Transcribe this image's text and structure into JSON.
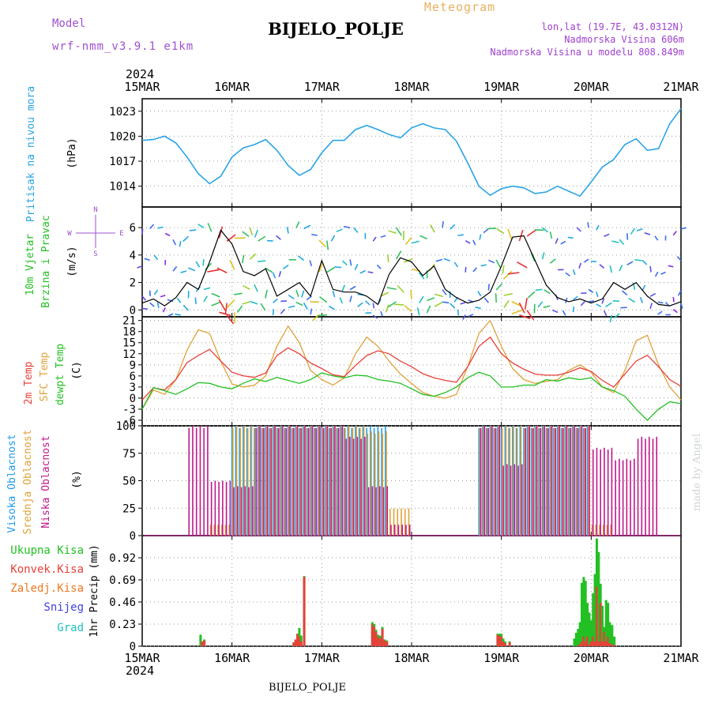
{
  "header": {
    "model_label": "Model",
    "model_name": "wrf-nmm_v3.9.1  e1km",
    "station": "BIJELO_POLJE",
    "product": "Meteogram",
    "lonlat": "lon,lat (19.7E, 43.0312N)",
    "elevation": "Nadmorska Visina 606m",
    "model_elevation": "Nadmorska Visina u modelu 808.849m",
    "footer_station": "BIJELO_POLJE",
    "credit": "made by Angel"
  },
  "colors": {
    "pressure": "#2aa4e6",
    "wind_speed": "#000000",
    "temp2m": "#e8403a",
    "sfc_temp": "#e0a23a",
    "dewpt": "#22c022",
    "cloud_high": "#1f9be8",
    "cloud_mid": "#e0a23a",
    "cloud_low": "#c0188c",
    "precip_total": "#22c022",
    "precip_conv": "#e8403a",
    "legend_freezing": "#f07820",
    "legend_snow": "#4040e0",
    "legend_hail": "#20c0c0",
    "model_text": "#a050d0",
    "product_text": "#e8b060",
    "info_text": "#a040d0"
  },
  "axes": {
    "year": "2024",
    "dates": [
      "15MAR",
      "16MAR",
      "17MAR",
      "18MAR",
      "19MAR",
      "20MAR",
      "21MAR"
    ]
  },
  "panels": {
    "pressure": {
      "label1": "Pritisak na nivou mora",
      "unit": "(hPa)",
      "ticks": [
        "1014",
        "1017",
        "1020",
        "1023"
      ]
    },
    "wind": {
      "label1": "10m Vjetar",
      "label2": "Brzina i Pravac",
      "unit": "(m/s)",
      "ticks": [
        "0",
        "2",
        "4",
        "6"
      ],
      "compass_n": "N",
      "compass_s": "S",
      "compass_w": "W",
      "compass_e": "E"
    },
    "temp": {
      "label1": "2m Temp",
      "label2": "SFC Temp",
      "label3": "dewpt Temp",
      "unit": "(C)",
      "ticks": [
        "-6",
        "-3",
        "0",
        "3",
        "6",
        "9",
        "12",
        "15",
        "18",
        "21"
      ]
    },
    "cloud": {
      "label1": "Visoka Oblacnost",
      "label2": "Srednja Oblacnost",
      "label3": "Niska Oblacnost",
      "unit": "(%)",
      "ticks": [
        "0",
        "25",
        "50",
        "75",
        "100"
      ]
    },
    "precip": {
      "unit": "1hr Precip (mm)",
      "ticks": [
        "0",
        "0.23",
        "0.46",
        "0.69",
        "0.92"
      ],
      "legend": [
        "Ukupna Kisa",
        "Konvek.Kisa",
        "Zaledj.Kisa",
        "Snijeg",
        "Grad"
      ]
    }
  },
  "chart_data": [
    {
      "type": "line",
      "ylabel": "(hPa)",
      "ylim": [
        1011.5,
        1024.5
      ],
      "x_hours": [
        0,
        3,
        6,
        9,
        12,
        15,
        18,
        21,
        24,
        27,
        30,
        33,
        36,
        39,
        42,
        45,
        48,
        51,
        54,
        57,
        60,
        63,
        66,
        69,
        72,
        75,
        78,
        81,
        84,
        87,
        90,
        93,
        96,
        99,
        102,
        105,
        108,
        111,
        114,
        117,
        120,
        123,
        126,
        129,
        132,
        135,
        138,
        141,
        144
      ],
      "series": [
        {
          "name": "Pritisak na nivou mora",
          "values": [
            1019.5,
            1019.6,
            1020.0,
            1019.2,
            1017.5,
            1015.5,
            1014.3,
            1015.2,
            1017.5,
            1018.6,
            1019.0,
            1019.6,
            1018.3,
            1016.5,
            1015.3,
            1016.0,
            1018.0,
            1019.5,
            1019.5,
            1020.8,
            1021.3,
            1020.8,
            1020.2,
            1019.8,
            1021.0,
            1021.5,
            1021.0,
            1020.8,
            1019.4,
            1016.8,
            1014.0,
            1012.9,
            1013.7,
            1014.0,
            1013.8,
            1013.1,
            1013.3,
            1014.0,
            1013.4,
            1012.8,
            1014.5,
            1016.3,
            1017.2,
            1019.0,
            1019.7,
            1018.3,
            1018.5,
            1021.5,
            1023.3
          ]
        }
      ]
    },
    {
      "type": "line",
      "ylabel": "(m/s)",
      "ylim": [
        -0.5,
        7.5
      ],
      "x_hours": [
        0,
        3,
        6,
        9,
        12,
        15,
        18,
        21,
        24,
        27,
        30,
        33,
        36,
        39,
        42,
        45,
        48,
        51,
        54,
        57,
        60,
        63,
        66,
        69,
        72,
        75,
        78,
        81,
        84,
        87,
        90,
        93,
        96,
        99,
        102,
        105,
        108,
        111,
        114,
        117,
        120,
        123,
        126,
        129,
        132,
        135,
        138,
        141,
        144
      ],
      "series": [
        {
          "name": "Brzina",
          "values": [
            0.5,
            0.8,
            0.3,
            0.9,
            2.0,
            1.5,
            3.5,
            5.8,
            4.8,
            2.8,
            2.5,
            3.0,
            1.0,
            1.5,
            2.0,
            1.0,
            3.6,
            1.5,
            1.3,
            1.3,
            1.0,
            0.4,
            2.6,
            3.8,
            3.5,
            2.5,
            3.2,
            1.5,
            0.9,
            0.5,
            0.7,
            1.3,
            3.2,
            5.3,
            5.4,
            3.6,
            1.8,
            0.9,
            0.6,
            0.8,
            0.5,
            0.8,
            2.0,
            1.5,
            2.0,
            1.0,
            0.4,
            0.3,
            0.6
          ]
        }
      ]
    },
    {
      "type": "line",
      "ylabel": "(C)",
      "ylim": [
        -7.5,
        22
      ],
      "x_hours": [
        0,
        3,
        6,
        9,
        12,
        15,
        18,
        21,
        24,
        27,
        30,
        33,
        36,
        39,
        42,
        45,
        48,
        51,
        54,
        57,
        60,
        63,
        66,
        69,
        72,
        75,
        78,
        81,
        84,
        87,
        90,
        93,
        96,
        99,
        102,
        105,
        108,
        111,
        114,
        117,
        120,
        123,
        126,
        129,
        132,
        135,
        138,
        141,
        144
      ],
      "series": [
        {
          "name": "2m Temp",
          "values": [
            -0.5,
            2.8,
            2.2,
            5.0,
            9.6,
            11.5,
            13.2,
            10.0,
            7.0,
            6.0,
            5.6,
            6.8,
            11.5,
            13.6,
            12.0,
            9.5,
            8.0,
            6.3,
            5.8,
            8.8,
            11.5,
            12.8,
            12.0,
            10.0,
            8.5,
            6.6,
            5.5,
            4.8,
            4.3,
            8.5,
            14.0,
            16.5,
            12.0,
            9.5,
            7.8,
            6.5,
            6.2,
            6.2,
            7.0,
            8.2,
            7.2,
            4.8,
            3.0,
            6.5,
            10.0,
            11.6,
            8.5,
            5.0,
            3.2
          ]
        },
        {
          "name": "SFC Temp",
          "values": [
            -3.0,
            2.2,
            1.0,
            5.0,
            13.0,
            18.5,
            17.5,
            10.0,
            3.8,
            3.0,
            3.5,
            6.0,
            14.0,
            19.5,
            15.0,
            7.5,
            5.0,
            3.5,
            5.5,
            12.0,
            16.5,
            14.0,
            10.0,
            6.5,
            4.0,
            1.5,
            0.5,
            0.0,
            1.0,
            8.5,
            17.5,
            21.0,
            14.0,
            8.0,
            5.0,
            4.0,
            4.5,
            5.0,
            7.5,
            9.0,
            7.0,
            3.0,
            1.5,
            7.5,
            15.5,
            17.0,
            9.0,
            3.0,
            -0.5
          ]
        },
        {
          "name": "dewpt Temp",
          "values": [
            -3.0,
            2.8,
            2.0,
            1.0,
            2.5,
            4.2,
            4.0,
            3.0,
            2.5,
            4.0,
            5.2,
            4.5,
            5.6,
            4.8,
            4.0,
            5.0,
            6.8,
            6.0,
            5.5,
            6.2,
            6.0,
            5.0,
            4.6,
            4.0,
            2.5,
            1.0,
            0.5,
            1.5,
            3.0,
            5.5,
            7.0,
            6.0,
            3.0,
            3.0,
            3.5,
            3.5,
            5.0,
            4.6,
            5.5,
            5.0,
            5.5,
            3.0,
            2.0,
            0.5,
            -3.0,
            -6.0,
            -3.0,
            -1.0,
            -1.5
          ]
        }
      ]
    },
    {
      "type": "bar",
      "ylabel": "(%)",
      "ylim": [
        0,
        100
      ],
      "categories": [
        "15MAR 12h",
        "15MAR 18h",
        "16MAR 00h",
        "16MAR 06h",
        "16MAR 12h",
        "16MAR 18h",
        "17MAR 00h",
        "17MAR 06h",
        "17MAR 12h",
        "17MAR 18h",
        "18MAR 00h",
        "18MAR 06h",
        "18MAR 12h",
        "18MAR 18h",
        "19MAR 00h",
        "19MAR 06h",
        "19MAR 12h",
        "19MAR 18h",
        "20MAR 00h",
        "20MAR 06h",
        "20MAR 12h",
        "20MAR 18h"
      ],
      "series": [
        {
          "name": "Visoka Oblacnost",
          "values": [
            0,
            0,
            100,
            100,
            100,
            100,
            100,
            100,
            100,
            0,
            0,
            0,
            0,
            100,
            100,
            100,
            100,
            100,
            0,
            0,
            0,
            0
          ]
        },
        {
          "name": "Srednja Oblacnost",
          "values": [
            0,
            10,
            100,
            100,
            100,
            100,
            100,
            100,
            95,
            25,
            0,
            0,
            0,
            100,
            100,
            100,
            100,
            100,
            10,
            0,
            0,
            0
          ]
        },
        {
          "name": "Niska Oblacnost",
          "values": [
            100,
            50,
            45,
            100,
            100,
            100,
            100,
            90,
            45,
            10,
            0,
            0,
            0,
            100,
            65,
            100,
            100,
            100,
            80,
            70,
            90,
            0
          ]
        }
      ]
    },
    {
      "type": "bar",
      "ylabel": "1hr Precip (mm)",
      "ylim": [
        0,
        1.15
      ],
      "bars": [
        {
          "h": 15.6,
          "total": 0.12,
          "conv": 0.0
        },
        {
          "h": 16.0,
          "total": 0.05,
          "conv": 0.05
        },
        {
          "h": 16.6,
          "total": 0.07,
          "conv": 0.06
        },
        {
          "h": 40.5,
          "total": 0.04,
          "conv": 0.04
        },
        {
          "h": 41.0,
          "total": 0.07,
          "conv": 0.07
        },
        {
          "h": 41.5,
          "total": 0.13,
          "conv": 0.13
        },
        {
          "h": 42.0,
          "total": 0.19,
          "conv": 0.1
        },
        {
          "h": 42.5,
          "total": 0.11,
          "conv": 0.05
        },
        {
          "h": 43.3,
          "total": 0.73,
          "conv": 0.72
        },
        {
          "h": 61.5,
          "total": 0.25,
          "conv": 0.23
        },
        {
          "h": 62.0,
          "total": 0.23,
          "conv": 0.2
        },
        {
          "h": 62.5,
          "total": 0.17,
          "conv": 0.15
        },
        {
          "h": 63.0,
          "total": 0.12,
          "conv": 0.1
        },
        {
          "h": 63.6,
          "total": 0.11,
          "conv": 0.08
        },
        {
          "h": 64.2,
          "total": 0.2,
          "conv": 0.18
        },
        {
          "h": 64.8,
          "total": 0.07,
          "conv": 0.06
        },
        {
          "h": 65.4,
          "total": 0.06,
          "conv": 0.05
        },
        {
          "h": 95.0,
          "total": 0.13,
          "conv": 0.12
        },
        {
          "h": 95.5,
          "total": 0.13,
          "conv": 0.11
        },
        {
          "h": 96.0,
          "total": 0.13,
          "conv": 0.1
        },
        {
          "h": 96.5,
          "total": 0.08,
          "conv": 0.05
        },
        {
          "h": 97.0,
          "total": 0.05,
          "conv": 0.03
        },
        {
          "h": 98.2,
          "total": 0.05,
          "conv": 0.04
        },
        {
          "h": 115.5,
          "total": 0.08,
          "conv": 0.0
        },
        {
          "h": 116.0,
          "total": 0.14,
          "conv": 0.0
        },
        {
          "h": 116.5,
          "total": 0.18,
          "conv": 0.01
        },
        {
          "h": 117.0,
          "total": 0.25,
          "conv": 0.02
        },
        {
          "h": 117.5,
          "total": 0.66,
          "conv": 0.05
        },
        {
          "h": 118.0,
          "total": 0.72,
          "conv": 0.1
        },
        {
          "h": 118.5,
          "total": 0.68,
          "conv": 0.05
        },
        {
          "h": 119.0,
          "total": 0.45,
          "conv": 0.1
        },
        {
          "h": 119.5,
          "total": 0.35,
          "conv": 0.02
        },
        {
          "h": 120.0,
          "total": 0.27,
          "conv": 0.05
        },
        {
          "h": 120.5,
          "total": 0.55,
          "conv": 0.1
        },
        {
          "h": 121.0,
          "total": 0.75,
          "conv": 0.05
        },
        {
          "h": 121.5,
          "total": 1.12,
          "conv": 0.62
        },
        {
          "h": 122.0,
          "total": 0.98,
          "conv": 0.05
        },
        {
          "h": 122.5,
          "total": 0.65,
          "conv": 0.45
        },
        {
          "h": 123.0,
          "total": 0.42,
          "conv": 0.05
        },
        {
          "h": 123.5,
          "total": 0.2,
          "conv": 0.15
        },
        {
          "h": 124.0,
          "total": 0.48,
          "conv": 0.05
        },
        {
          "h": 124.5,
          "total": 0.45,
          "conv": 0.1
        },
        {
          "h": 125.0,
          "total": 0.25,
          "conv": 0.03
        },
        {
          "h": 125.6,
          "total": 0.22,
          "conv": 0.02
        },
        {
          "h": 126.2,
          "total": 0.1,
          "conv": 0.01
        }
      ]
    }
  ]
}
